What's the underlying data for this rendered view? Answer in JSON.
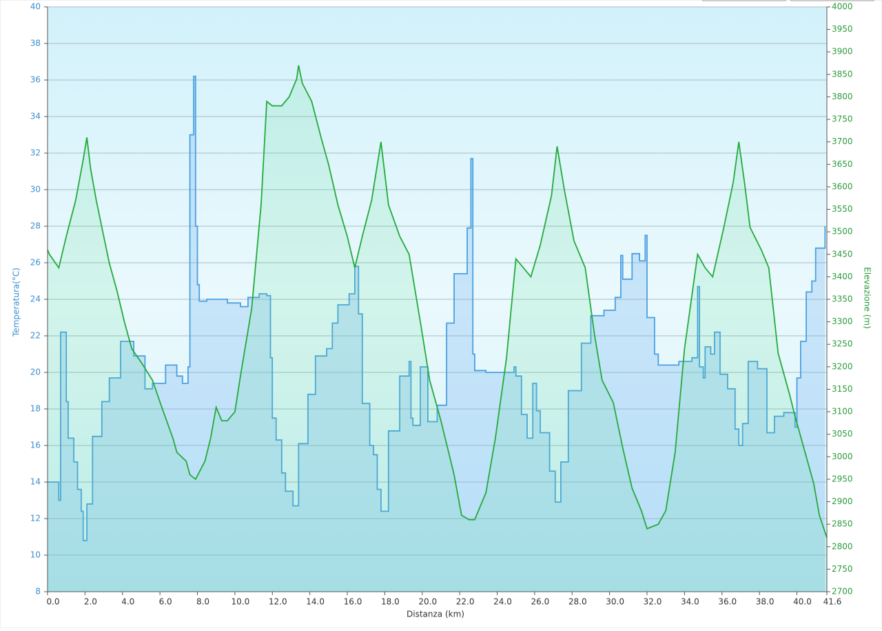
{
  "chart_data": {
    "type": "line",
    "x_label": "Distanza  (km)",
    "y_label": "Temperatura(°C)",
    "y2_label": "Elevazione (m)",
    "xlim": [
      0,
      41.6
    ],
    "xticks": [
      {
        "value": 0,
        "label": "0.0"
      },
      {
        "value": 2,
        "label": "2.0"
      },
      {
        "value": 4,
        "label": "4.0"
      },
      {
        "value": 6,
        "label": "6.0"
      },
      {
        "value": 8,
        "label": "8.0"
      },
      {
        "value": 10,
        "label": "10.0"
      },
      {
        "value": 12,
        "label": "12.0"
      },
      {
        "value": 14,
        "label": "14.0"
      },
      {
        "value": 16,
        "label": "16.0"
      },
      {
        "value": 18,
        "label": "18.0"
      },
      {
        "value": 20,
        "label": "20.0"
      },
      {
        "value": 22,
        "label": "22.0"
      },
      {
        "value": 24,
        "label": "24.0"
      },
      {
        "value": 26,
        "label": "26.0"
      },
      {
        "value": 28,
        "label": "28.0"
      },
      {
        "value": 30,
        "label": "30.0"
      },
      {
        "value": 32,
        "label": "32.0"
      },
      {
        "value": 34,
        "label": "34.0"
      },
      {
        "value": 36,
        "label": "36.0"
      },
      {
        "value": 38,
        "label": "38.0"
      },
      {
        "value": 40,
        "label": "40.0"
      },
      41.6
    ],
    "ylim": [
      8,
      40
    ],
    "yticks": [
      8,
      10,
      12,
      14,
      16,
      18,
      20,
      22,
      24,
      26,
      28,
      30,
      32,
      34,
      36,
      38,
      40
    ],
    "y2lim": [
      2700,
      4000
    ],
    "y2ticks": [
      2700,
      2750,
      2800,
      2850,
      2900,
      2950,
      3000,
      3050,
      3100,
      3150,
      3200,
      3250,
      3300,
      3350,
      3400,
      3450,
      3500,
      3550,
      3600,
      3650,
      3700,
      3750,
      3800,
      3850,
      3900,
      3950,
      4000
    ],
    "grid": true,
    "series": [
      {
        "color": "#4a9fe0",
        "axis": "y",
        "step": true,
        "x": [
          0.0,
          0.6,
          0.7,
          1.0,
          1.1,
          1.4,
          1.6,
          1.8,
          1.9,
          2.1,
          2.4,
          2.9,
          3.3,
          3.9,
          4.6,
          5.2,
          5.6,
          6.3,
          6.9,
          7.2,
          7.5,
          7.6,
          7.8,
          7.9,
          8.0,
          8.1,
          8.5,
          9.6,
          10.3,
          10.7,
          11.3,
          11.7,
          11.9,
          12.0,
          12.2,
          12.5,
          12.7,
          13.1,
          13.4,
          13.9,
          14.3,
          14.9,
          15.2,
          15.5,
          16.1,
          16.4,
          16.6,
          16.8,
          17.2,
          17.4,
          17.6,
          17.8,
          18.2,
          18.8,
          19.3,
          19.4,
          19.5,
          19.9,
          20.3,
          20.8,
          21.3,
          21.7,
          22.4,
          22.6,
          22.7,
          22.8,
          23.4,
          24.9,
          25.0,
          25.3,
          25.6,
          25.9,
          26.1,
          26.3,
          26.8,
          27.1,
          27.4,
          27.8,
          28.5,
          29.0,
          29.7,
          30.3,
          30.6,
          30.7,
          31.2,
          31.6,
          31.9,
          32.0,
          32.4,
          32.6,
          33.7,
          34.4,
          34.7,
          34.8,
          35.0,
          35.1,
          35.4,
          35.6,
          35.9,
          36.3,
          36.7,
          36.9,
          37.1,
          37.4,
          37.9,
          38.4,
          38.8,
          39.3,
          39.9,
          40.0,
          40.2,
          40.5,
          40.8,
          41.0,
          41.5
        ],
        "values": [
          14,
          13,
          22.2,
          18.4,
          16.4,
          15.1,
          13.6,
          12.4,
          10.8,
          12.8,
          16.5,
          18.4,
          19.7,
          21.7,
          20.9,
          19.1,
          19.4,
          20.4,
          19.8,
          19.4,
          20.3,
          33,
          36.2,
          28,
          24.8,
          23.9,
          24,
          23.8,
          23.6,
          24.1,
          24.3,
          24.2,
          20.8,
          17.5,
          16.3,
          14.5,
          13.5,
          12.7,
          16.1,
          18.8,
          20.9,
          21.3,
          22.7,
          23.7,
          24.3,
          25.8,
          23.2,
          18.3,
          16.0,
          15.5,
          13.6,
          12.4,
          16.8,
          19.8,
          20.6,
          17.5,
          17.1,
          20.3,
          17.3,
          18.2,
          22.7,
          25.4,
          27.9,
          31.7,
          21,
          20.1,
          20.0,
          20.3,
          19.8,
          17.7,
          16.4,
          19.4,
          17.9,
          16.7,
          14.6,
          12.9,
          15.1,
          19.0,
          21.6,
          23.1,
          23.4,
          24.1,
          26.4,
          25.1,
          26.5,
          26.1,
          27.5,
          23,
          21,
          20.4,
          20.6,
          20.8,
          24.7,
          20.3,
          19.7,
          21.4,
          21.0,
          22.2,
          19.9,
          19.1,
          16.9,
          16.0,
          17.2,
          20.6,
          20.2,
          16.7,
          17.6,
          17.8,
          17,
          19.7,
          21.7,
          24.4,
          25,
          26.8,
          28
        ]
      },
      {
        "color": "#22aa3a",
        "axis": "y2",
        "x": [
          0.0,
          0.1,
          0.6,
          1.0,
          1.5,
          1.9,
          2.1,
          2.3,
          2.6,
          2.9,
          3.3,
          3.7,
          4.1,
          4.5,
          5.0,
          5.6,
          6.1,
          6.7,
          6.9,
          7.4,
          7.6,
          7.9,
          8.4,
          8.7,
          9.0,
          9.3,
          9.6,
          10.0,
          10.3,
          10.9,
          11.4,
          11.7,
          12.0,
          12.5,
          12.9,
          13.3,
          13.4,
          13.6,
          14.1,
          14.6,
          15.0,
          15.5,
          16.0,
          16.4,
          16.8,
          17.3,
          17.8,
          18.2,
          18.8,
          19.3,
          19.9,
          20.4,
          21.0,
          21.7,
          22.1,
          22.5,
          22.8,
          23.4,
          23.9,
          24.5,
          25.0,
          25.4,
          25.8,
          26.3,
          26.9,
          27.2,
          27.6,
          28.1,
          28.7,
          29.2,
          29.6,
          30.2,
          30.7,
          31.2,
          31.7,
          32.0,
          32.6,
          33.0,
          33.5,
          34.0,
          34.7,
          35.1,
          35.5,
          36.1,
          36.6,
          36.9,
          37.2,
          37.5,
          38.1,
          38.5,
          39.0,
          39.6,
          39.9,
          40.5,
          40.9,
          41.2,
          41.6
        ],
        "values": [
          3460,
          3450,
          3420,
          3490,
          3570,
          3660,
          3710,
          3640,
          3570,
          3510,
          3430,
          3370,
          3300,
          3240,
          3210,
          3170,
          3110,
          3040,
          3010,
          2990,
          2960,
          2950,
          2990,
          3040,
          3110,
          3080,
          3080,
          3100,
          3180,
          3330,
          3560,
          3790,
          3780,
          3780,
          3800,
          3840,
          3870,
          3830,
          3790,
          3710,
          3650,
          3560,
          3490,
          3420,
          3490,
          3570,
          3700,
          3560,
          3490,
          3450,
          3300,
          3170,
          3080,
          2960,
          2870,
          2860,
          2860,
          2920,
          3040,
          3220,
          3440,
          3420,
          3400,
          3470,
          3580,
          3690,
          3590,
          3480,
          3420,
          3270,
          3170,
          3120,
          3020,
          2930,
          2880,
          2840,
          2850,
          2880,
          3010,
          3240,
          3450,
          3420,
          3400,
          3510,
          3610,
          3700,
          3610,
          3510,
          3460,
          3420,
          3230,
          3140,
          3090,
          3000,
          2940,
          2870,
          2820
        ]
      }
    ]
  }
}
